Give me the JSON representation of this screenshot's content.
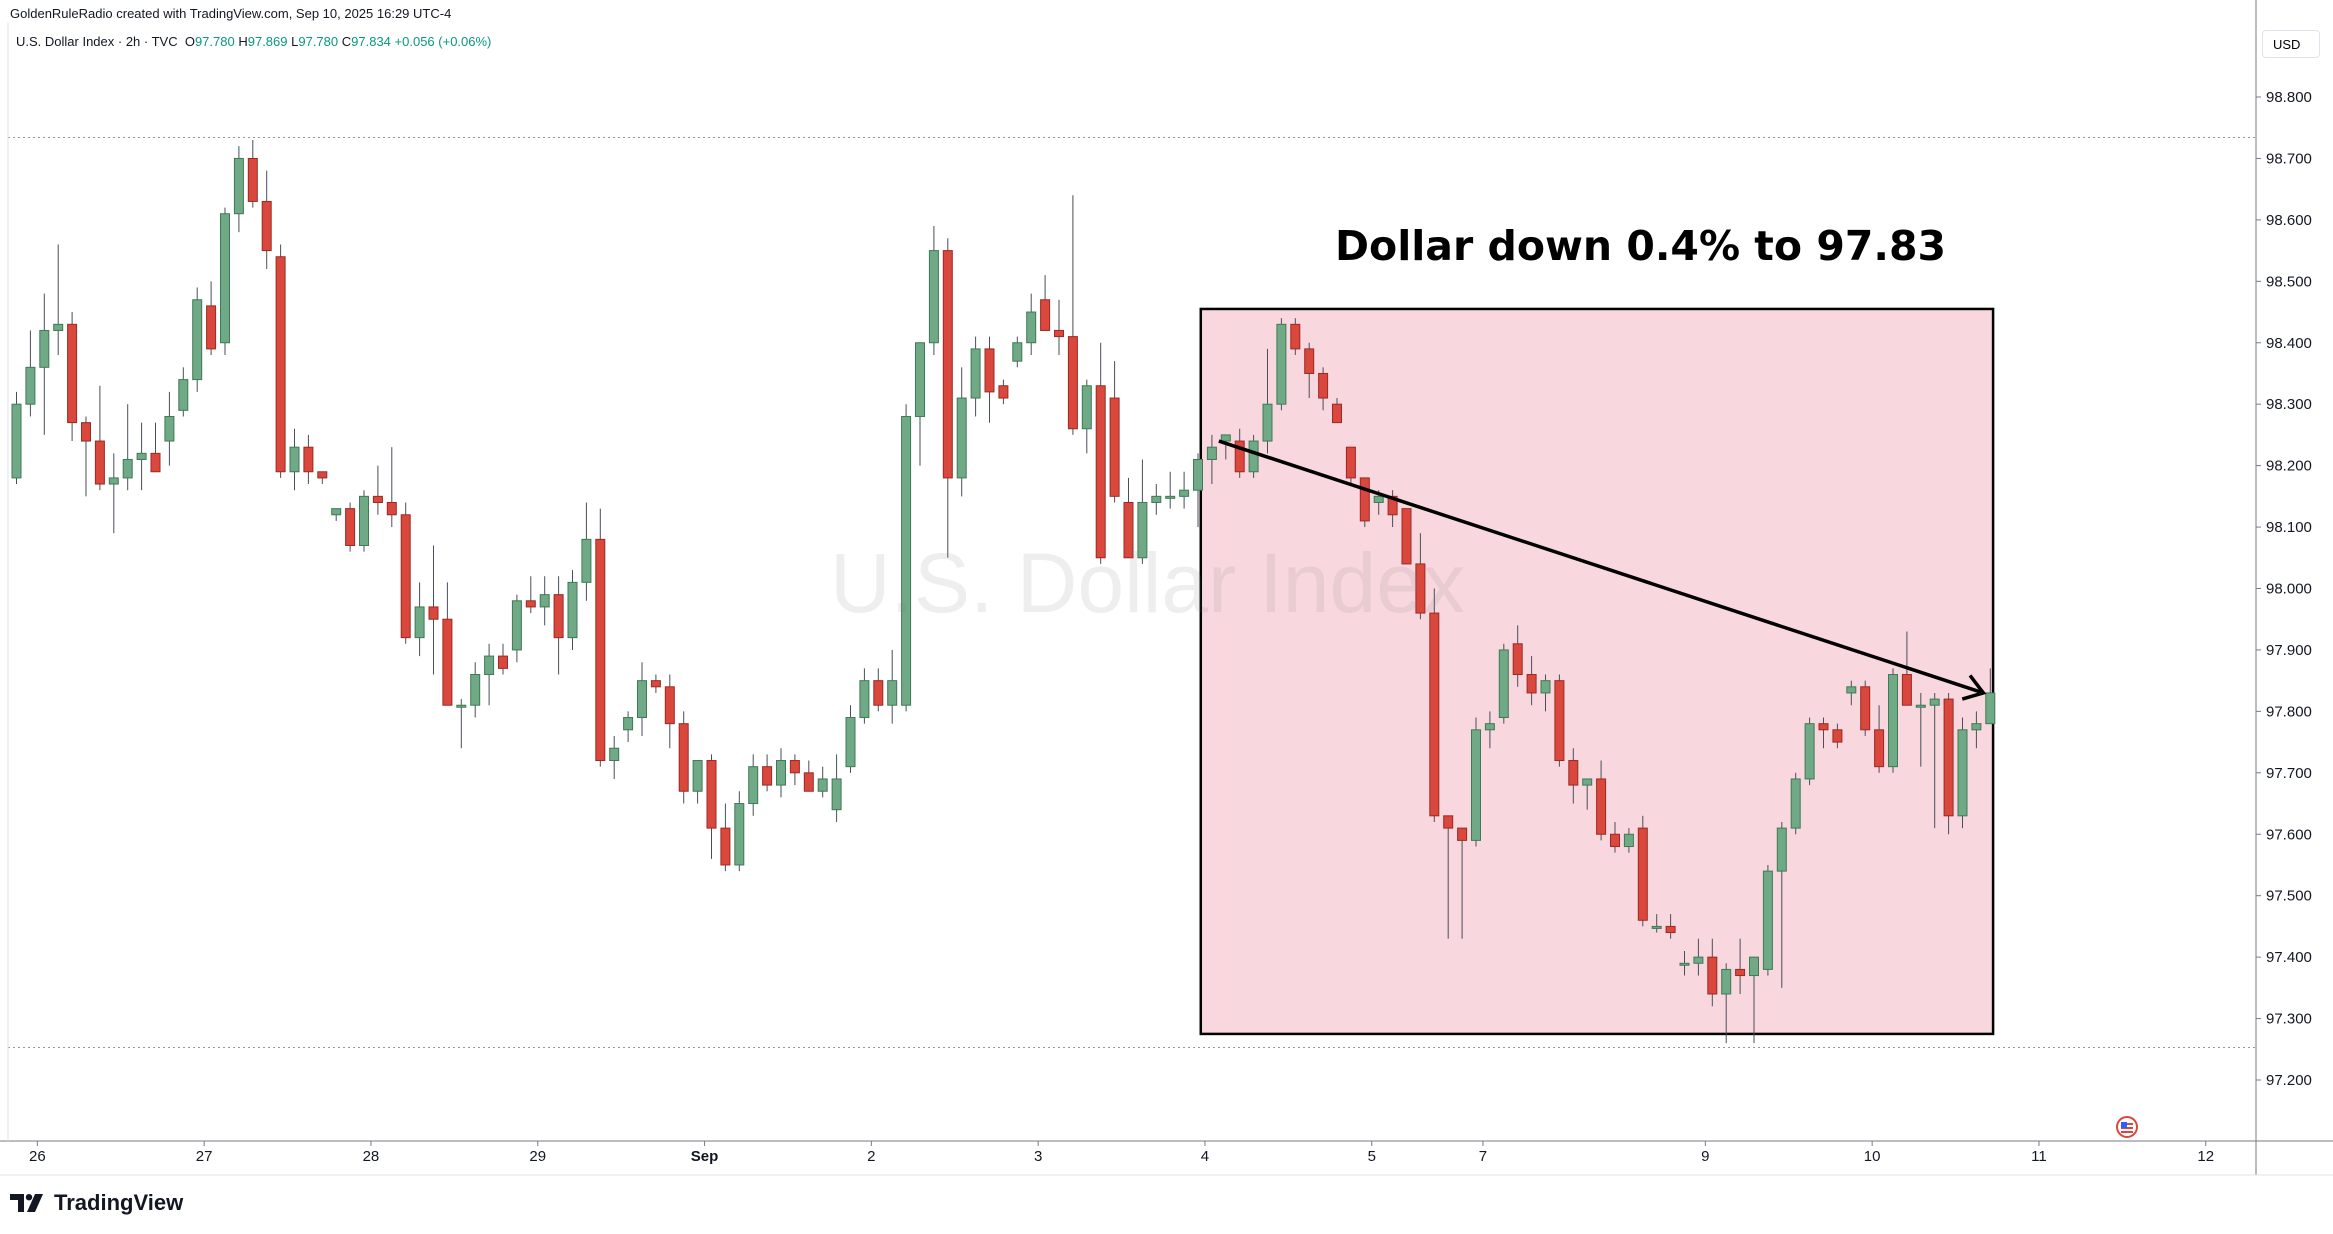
{
  "header": {
    "credit": "GoldenRuleRadio created with TradingView.com, Sep 10, 2025 16:29 UTC-4",
    "symbol": "U.S. Dollar Index · 2h · TVC",
    "ohlc": {
      "o_label": "O",
      "o": "97.780",
      "h_label": "H",
      "h": "97.869",
      "l_label": "L",
      "l": "97.780",
      "c_label": "C",
      "c": "97.834",
      "change": "+0.056 (+0.06%)"
    }
  },
  "currency": "USD",
  "watermark": "U.S. Dollar Index",
  "annotation": {
    "headline": "Dollar down 0.4% to 97.83"
  },
  "branding": {
    "name": "TradingView"
  },
  "colors": {
    "up": "#6fa985",
    "down": "#d9473d",
    "highlight_fill": "#f8d8de",
    "accent": "#2962ff"
  },
  "chart_data": {
    "type": "candlestick",
    "symbol": "U.S. Dollar Index",
    "interval": "2h",
    "ylim": [
      97.13,
      98.93
    ],
    "y_ticks": [
      "98.800",
      "98.700",
      "98.600",
      "98.500",
      "98.400",
      "98.300",
      "98.200",
      "98.100",
      "98.000",
      "97.900",
      "97.800",
      "97.700",
      "97.600",
      "97.500",
      "97.400",
      "97.300",
      "97.200"
    ],
    "x_ticks": [
      {
        "label": "26",
        "idx": 1.5,
        "bold": false
      },
      {
        "label": "27",
        "idx": 13.5,
        "bold": false
      },
      {
        "label": "28",
        "idx": 25.5,
        "bold": false
      },
      {
        "label": "29",
        "idx": 37.5,
        "bold": false
      },
      {
        "label": "Sep",
        "idx": 49.5,
        "bold": true
      },
      {
        "label": "2",
        "idx": 61.5,
        "bold": false
      },
      {
        "label": "3",
        "idx": 73.5,
        "bold": false
      },
      {
        "label": "4",
        "idx": 85.5,
        "bold": false
      },
      {
        "label": "5",
        "idx": 97.5,
        "bold": false
      },
      {
        "label": "7",
        "idx": 105.5,
        "bold": false
      },
      {
        "label": "9",
        "idx": 121.5,
        "bold": false
      },
      {
        "label": "10",
        "idx": 133.5,
        "bold": false
      },
      {
        "label": "11",
        "idx": 145.5,
        "bold": false
      },
      {
        "label": "12",
        "idx": 157.5,
        "bold": false
      }
    ],
    "reference_lines": [
      98.734,
      97.253
    ],
    "highlight_box": {
      "idx_start": 85.2,
      "idx_end": 142.2,
      "price_top": 98.455,
      "price_bottom": 97.275
    },
    "trend_arrow": {
      "from": {
        "idx": 86.5,
        "price": 98.24
      },
      "to": {
        "idx": 141.5,
        "price": 97.83
      }
    },
    "candles": [
      {
        "o": 98.18,
        "h": 98.32,
        "l": 98.17,
        "c": 98.3
      },
      {
        "o": 98.3,
        "h": 98.42,
        "l": 98.28,
        "c": 98.36
      },
      {
        "o": 98.36,
        "h": 98.48,
        "l": 98.25,
        "c": 98.42
      },
      {
        "o": 98.42,
        "h": 98.56,
        "l": 98.38,
        "c": 98.43
      },
      {
        "o": 98.43,
        "h": 98.45,
        "l": 98.24,
        "c": 98.27
      },
      {
        "o": 98.27,
        "h": 98.28,
        "l": 98.15,
        "c": 98.24
      },
      {
        "o": 98.24,
        "h": 98.33,
        "l": 98.16,
        "c": 98.17
      },
      {
        "o": 98.17,
        "h": 98.22,
        "l": 98.09,
        "c": 98.18
      },
      {
        "o": 98.18,
        "h": 98.3,
        "l": 98.16,
        "c": 98.21
      },
      {
        "o": 98.21,
        "h": 98.27,
        "l": 98.16,
        "c": 98.22
      },
      {
        "o": 98.22,
        "h": 98.27,
        "l": 98.19,
        "c": 98.19
      },
      {
        "o": 98.24,
        "h": 98.32,
        "l": 98.2,
        "c": 98.28
      },
      {
        "o": 98.29,
        "h": 98.36,
        "l": 98.28,
        "c": 98.34
      },
      {
        "o": 98.34,
        "h": 98.49,
        "l": 98.32,
        "c": 98.47
      },
      {
        "o": 98.46,
        "h": 98.5,
        "l": 98.38,
        "c": 98.39
      },
      {
        "o": 98.4,
        "h": 98.62,
        "l": 98.38,
        "c": 98.61
      },
      {
        "o": 98.61,
        "h": 98.72,
        "l": 98.58,
        "c": 98.7
      },
      {
        "o": 98.7,
        "h": 98.73,
        "l": 98.62,
        "c": 98.63
      },
      {
        "o": 98.63,
        "h": 98.68,
        "l": 98.52,
        "c": 98.55
      },
      {
        "o": 98.54,
        "h": 98.56,
        "l": 98.18,
        "c": 98.19
      },
      {
        "o": 98.19,
        "h": 98.26,
        "l": 98.16,
        "c": 98.23
      },
      {
        "o": 98.23,
        "h": 98.25,
        "l": 98.17,
        "c": 98.19
      },
      {
        "o": 98.19,
        "h": 98.19,
        "l": 98.17,
        "c": 98.18
      },
      {
        "o": 98.12,
        "h": 98.13,
        "l": 98.11,
        "c": 98.13
      },
      {
        "o": 98.13,
        "h": 98.14,
        "l": 98.06,
        "c": 98.07
      },
      {
        "o": 98.07,
        "h": 98.16,
        "l": 98.06,
        "c": 98.15
      },
      {
        "o": 98.15,
        "h": 98.2,
        "l": 98.12,
        "c": 98.14
      },
      {
        "o": 98.14,
        "h": 98.23,
        "l": 98.1,
        "c": 98.12
      },
      {
        "o": 98.12,
        "h": 98.14,
        "l": 97.91,
        "c": 97.92
      },
      {
        "o": 97.92,
        "h": 98.01,
        "l": 97.89,
        "c": 97.97
      },
      {
        "o": 97.97,
        "h": 98.07,
        "l": 97.86,
        "c": 97.95
      },
      {
        "o": 97.95,
        "h": 98.01,
        "l": 97.81,
        "c": 97.81
      },
      {
        "o": 97.81,
        "h": 97.82,
        "l": 97.74,
        "c": 97.81
      },
      {
        "o": 97.81,
        "h": 97.88,
        "l": 97.79,
        "c": 97.86
      },
      {
        "o": 97.86,
        "h": 97.91,
        "l": 97.81,
        "c": 97.89
      },
      {
        "o": 97.89,
        "h": 97.91,
        "l": 97.86,
        "c": 97.87
      },
      {
        "o": 97.9,
        "h": 97.99,
        "l": 97.88,
        "c": 97.98
      },
      {
        "o": 97.98,
        "h": 98.02,
        "l": 97.96,
        "c": 97.97
      },
      {
        "o": 97.97,
        "h": 98.02,
        "l": 97.94,
        "c": 97.99
      },
      {
        "o": 97.99,
        "h": 98.02,
        "l": 97.86,
        "c": 97.92
      },
      {
        "o": 97.92,
        "h": 98.03,
        "l": 97.9,
        "c": 98.01
      },
      {
        "o": 98.01,
        "h": 98.14,
        "l": 97.98,
        "c": 98.08
      },
      {
        "o": 98.08,
        "h": 98.13,
        "l": 97.71,
        "c": 97.72
      },
      {
        "o": 97.72,
        "h": 97.76,
        "l": 97.69,
        "c": 97.74
      },
      {
        "o": 97.77,
        "h": 97.8,
        "l": 97.75,
        "c": 97.79
      },
      {
        "o": 97.79,
        "h": 97.88,
        "l": 97.76,
        "c": 97.85
      },
      {
        "o": 97.85,
        "h": 97.86,
        "l": 97.83,
        "c": 97.84
      },
      {
        "o": 97.84,
        "h": 97.86,
        "l": 97.74,
        "c": 97.78
      },
      {
        "o": 97.78,
        "h": 97.8,
        "l": 97.65,
        "c": 97.67
      },
      {
        "o": 97.67,
        "h": 97.72,
        "l": 97.65,
        "c": 97.72
      },
      {
        "o": 97.72,
        "h": 97.73,
        "l": 97.56,
        "c": 97.61
      },
      {
        "o": 97.61,
        "h": 97.65,
        "l": 97.54,
        "c": 97.55
      },
      {
        "o": 97.55,
        "h": 97.67,
        "l": 97.54,
        "c": 97.65
      },
      {
        "o": 97.65,
        "h": 97.73,
        "l": 97.63,
        "c": 97.71
      },
      {
        "o": 97.71,
        "h": 97.73,
        "l": 97.67,
        "c": 97.68
      },
      {
        "o": 97.68,
        "h": 97.74,
        "l": 97.66,
        "c": 97.72
      },
      {
        "o": 97.72,
        "h": 97.73,
        "l": 97.68,
        "c": 97.7
      },
      {
        "o": 97.7,
        "h": 97.72,
        "l": 97.67,
        "c": 97.67
      },
      {
        "o": 97.67,
        "h": 97.71,
        "l": 97.66,
        "c": 97.69
      },
      {
        "o": 97.64,
        "h": 97.73,
        "l": 97.62,
        "c": 97.69
      },
      {
        "o": 97.71,
        "h": 97.81,
        "l": 97.7,
        "c": 97.79
      },
      {
        "o": 97.79,
        "h": 97.87,
        "l": 97.78,
        "c": 97.85
      },
      {
        "o": 97.85,
        "h": 97.87,
        "l": 97.8,
        "c": 97.81
      },
      {
        "o": 97.81,
        "h": 97.9,
        "l": 97.78,
        "c": 97.85
      },
      {
        "o": 97.81,
        "h": 98.3,
        "l": 97.8,
        "c": 98.28
      },
      {
        "o": 98.28,
        "h": 98.4,
        "l": 98.2,
        "c": 98.4
      },
      {
        "o": 98.4,
        "h": 98.59,
        "l": 98.38,
        "c": 98.55
      },
      {
        "o": 98.55,
        "h": 98.57,
        "l": 98.05,
        "c": 98.18
      },
      {
        "o": 98.18,
        "h": 98.36,
        "l": 98.15,
        "c": 98.31
      },
      {
        "o": 98.31,
        "h": 98.41,
        "l": 98.28,
        "c": 98.39
      },
      {
        "o": 98.39,
        "h": 98.41,
        "l": 98.27,
        "c": 98.32
      },
      {
        "o": 98.33,
        "h": 98.34,
        "l": 98.3,
        "c": 98.31
      },
      {
        "o": 98.37,
        "h": 98.41,
        "l": 98.36,
        "c": 98.4
      },
      {
        "o": 98.4,
        "h": 98.48,
        "l": 98.38,
        "c": 98.45
      },
      {
        "o": 98.47,
        "h": 98.51,
        "l": 98.42,
        "c": 98.42
      },
      {
        "o": 98.42,
        "h": 98.47,
        "l": 98.38,
        "c": 98.41
      },
      {
        "o": 98.41,
        "h": 98.64,
        "l": 98.25,
        "c": 98.26
      },
      {
        "o": 98.26,
        "h": 98.34,
        "l": 98.22,
        "c": 98.33
      },
      {
        "o": 98.33,
        "h": 98.4,
        "l": 98.04,
        "c": 98.05
      },
      {
        "o": 98.31,
        "h": 98.37,
        "l": 98.14,
        "c": 98.15
      },
      {
        "o": 98.14,
        "h": 98.18,
        "l": 98.05,
        "c": 98.05
      },
      {
        "o": 98.05,
        "h": 98.21,
        "l": 98.04,
        "c": 98.14
      },
      {
        "o": 98.14,
        "h": 98.17,
        "l": 98.12,
        "c": 98.15
      },
      {
        "o": 98.15,
        "h": 98.19,
        "l": 98.13,
        "c": 98.15
      },
      {
        "o": 98.15,
        "h": 98.19,
        "l": 98.13,
        "c": 98.16
      },
      {
        "o": 98.16,
        "h": 98.22,
        "l": 98.1,
        "c": 98.21
      },
      {
        "o": 98.21,
        "h": 98.25,
        "l": 98.17,
        "c": 98.23
      },
      {
        "o": 98.24,
        "h": 98.25,
        "l": 98.21,
        "c": 98.25
      },
      {
        "o": 98.24,
        "h": 98.26,
        "l": 98.18,
        "c": 98.19
      },
      {
        "o": 98.19,
        "h": 98.25,
        "l": 98.18,
        "c": 98.24
      },
      {
        "o": 98.24,
        "h": 98.39,
        "l": 98.22,
        "c": 98.3
      },
      {
        "o": 98.3,
        "h": 98.44,
        "l": 98.29,
        "c": 98.43
      },
      {
        "o": 98.43,
        "h": 98.44,
        "l": 98.38,
        "c": 98.39
      },
      {
        "o": 98.39,
        "h": 98.4,
        "l": 98.31,
        "c": 98.35
      },
      {
        "o": 98.35,
        "h": 98.36,
        "l": 98.29,
        "c": 98.31
      },
      {
        "o": 98.3,
        "h": 98.31,
        "l": 98.27,
        "c": 98.27
      },
      {
        "o": 98.23,
        "h": 98.23,
        "l": 98.17,
        "c": 98.18
      },
      {
        "o": 98.18,
        "h": 98.18,
        "l": 98.1,
        "c": 98.11
      },
      {
        "o": 98.14,
        "h": 98.16,
        "l": 98.12,
        "c": 98.15
      },
      {
        "o": 98.15,
        "h": 98.16,
        "l": 98.1,
        "c": 98.12
      },
      {
        "o": 98.13,
        "h": 98.13,
        "l": 98.04,
        "c": 98.04
      },
      {
        "o": 98.04,
        "h": 98.09,
        "l": 97.95,
        "c": 97.96
      },
      {
        "o": 97.96,
        "h": 98.0,
        "l": 97.62,
        "c": 97.63
      },
      {
        "o": 97.63,
        "h": 97.63,
        "l": 97.43,
        "c": 97.61
      },
      {
        "o": 97.61,
        "h": 97.61,
        "l": 97.43,
        "c": 97.59
      },
      {
        "o": 97.59,
        "h": 97.79,
        "l": 97.58,
        "c": 97.77
      },
      {
        "o": 97.77,
        "h": 97.8,
        "l": 97.74,
        "c": 97.78
      },
      {
        "o": 97.79,
        "h": 97.91,
        "l": 97.78,
        "c": 97.9
      },
      {
        "o": 97.91,
        "h": 97.94,
        "l": 97.84,
        "c": 97.86
      },
      {
        "o": 97.86,
        "h": 97.89,
        "l": 97.81,
        "c": 97.83
      },
      {
        "o": 97.83,
        "h": 97.86,
        "l": 97.8,
        "c": 97.85
      },
      {
        "o": 97.85,
        "h": 97.86,
        "l": 97.71,
        "c": 97.72
      },
      {
        "o": 97.72,
        "h": 97.74,
        "l": 97.65,
        "c": 97.68
      },
      {
        "o": 97.68,
        "h": 97.69,
        "l": 97.64,
        "c": 97.69
      },
      {
        "o": 97.69,
        "h": 97.72,
        "l": 97.59,
        "c": 97.6
      },
      {
        "o": 97.6,
        "h": 97.62,
        "l": 97.57,
        "c": 97.58
      },
      {
        "o": 97.58,
        "h": 97.61,
        "l": 97.57,
        "c": 97.6
      },
      {
        "o": 97.61,
        "h": 97.63,
        "l": 97.45,
        "c": 97.46
      },
      {
        "o": 97.45,
        "h": 97.47,
        "l": 97.44,
        "c": 97.45
      },
      {
        "o": 97.45,
        "h": 97.47,
        "l": 97.43,
        "c": 97.44
      },
      {
        "o": 97.39,
        "h": 97.41,
        "l": 97.37,
        "c": 97.39
      },
      {
        "o": 97.39,
        "h": 97.43,
        "l": 97.37,
        "c": 97.4
      },
      {
        "o": 97.4,
        "h": 97.43,
        "l": 97.32,
        "c": 97.34
      },
      {
        "o": 97.34,
        "h": 97.39,
        "l": 97.26,
        "c": 97.38
      },
      {
        "o": 97.38,
        "h": 97.43,
        "l": 97.34,
        "c": 97.37
      },
      {
        "o": 97.37,
        "h": 97.4,
        "l": 97.26,
        "c": 97.4
      },
      {
        "o": 97.38,
        "h": 97.55,
        "l": 97.37,
        "c": 97.54
      },
      {
        "o": 97.54,
        "h": 97.62,
        "l": 97.35,
        "c": 97.61
      },
      {
        "o": 97.61,
        "h": 97.7,
        "l": 97.6,
        "c": 97.69
      },
      {
        "o": 97.69,
        "h": 97.79,
        "l": 97.68,
        "c": 97.78
      },
      {
        "o": 97.78,
        "h": 97.79,
        "l": 97.74,
        "c": 97.77
      },
      {
        "o": 97.77,
        "h": 97.78,
        "l": 97.74,
        "c": 97.75
      },
      {
        "o": 97.83,
        "h": 97.85,
        "l": 97.81,
        "c": 97.84
      },
      {
        "o": 97.84,
        "h": 97.85,
        "l": 97.76,
        "c": 97.77
      },
      {
        "o": 97.77,
        "h": 97.81,
        "l": 97.7,
        "c": 97.71
      },
      {
        "o": 97.71,
        "h": 97.87,
        "l": 97.7,
        "c": 97.86
      },
      {
        "o": 97.86,
        "h": 97.93,
        "l": 97.81,
        "c": 97.81
      },
      {
        "o": 97.81,
        "h": 97.83,
        "l": 97.71,
        "c": 97.81
      },
      {
        "o": 97.81,
        "h": 97.83,
        "l": 97.61,
        "c": 97.82
      },
      {
        "o": 97.82,
        "h": 97.83,
        "l": 97.6,
        "c": 97.63
      },
      {
        "o": 97.63,
        "h": 97.79,
        "l": 97.61,
        "c": 97.77
      },
      {
        "o": 97.77,
        "h": 97.8,
        "l": 97.74,
        "c": 97.78
      },
      {
        "o": 97.78,
        "h": 97.87,
        "l": 97.78,
        "c": 97.83
      }
    ]
  }
}
